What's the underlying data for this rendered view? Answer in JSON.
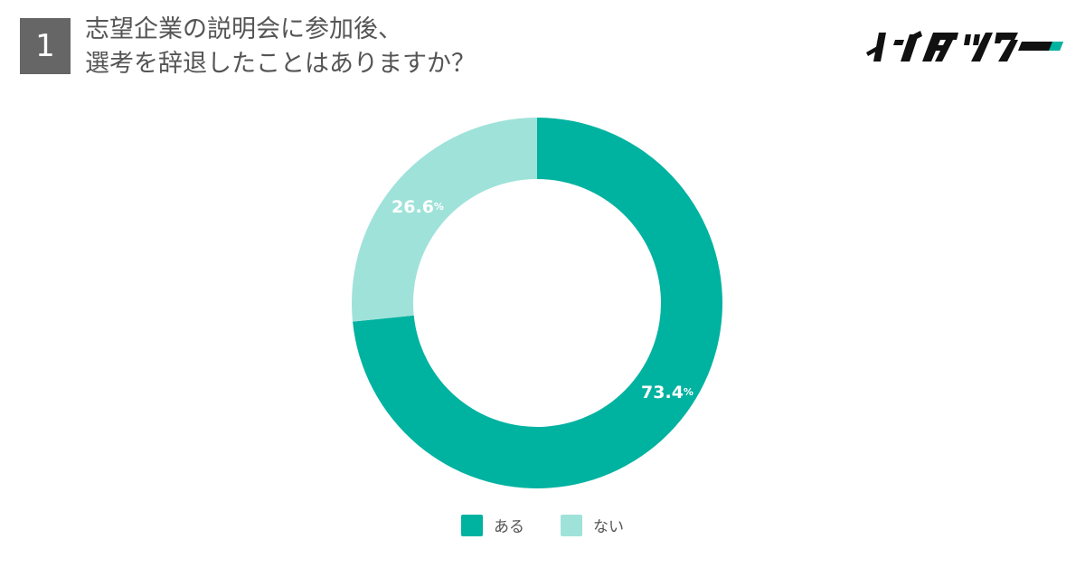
{
  "header": {
    "question_number": "1",
    "title_line1": "志望企業の説明会に参加後、",
    "title_line2": "選考を辞退したことはありますか？"
  },
  "logo": {
    "text": "インタツアー"
  },
  "colors": {
    "primary": "#00b2a0",
    "secondary": "#9fe2da",
    "text": "#555555",
    "badge": "#666666"
  },
  "chart_data": {
    "type": "pie",
    "variant": "donut",
    "title": "",
    "categories": [
      "ある",
      "ない"
    ],
    "values": [
      73.4,
      26.6
    ],
    "labels": [
      "73.4%",
      "26.6%"
    ],
    "colors": [
      "#00b2a0",
      "#9fe2da"
    ],
    "start_angle_deg": 0,
    "direction": "clockwise",
    "legend_position": "bottom"
  }
}
